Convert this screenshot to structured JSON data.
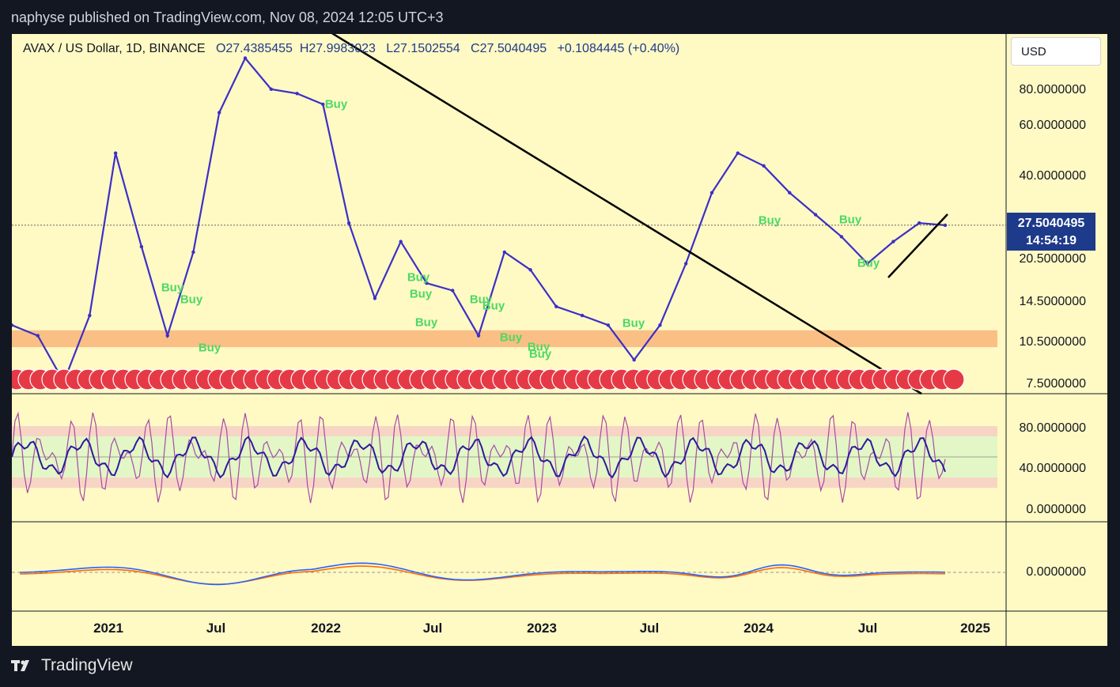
{
  "publisher_line": "naphyse published on TradingView.com, Nov 08, 2024 12:05 UTC+3",
  "header": {
    "symbol": "AVAX / US Dollar, 1D, BINANCE",
    "open": "O27.4385455",
    "high": "H27.9983023",
    "low": "L27.1502554",
    "close": "C27.5040495",
    "change": "+0.1084445 (+0.40%)"
  },
  "currency_button": "USD",
  "current_price": "27.5040495",
  "countdown": "14:54:19",
  "price_axis": [
    "80.0000000",
    "60.0000000",
    "40.0000000",
    "20.5000000",
    "14.5000000",
    "10.5000000",
    "7.5000000"
  ],
  "rsi_axis": [
    "80.0000000",
    "40.0000000",
    "0.0000000"
  ],
  "macd_axis": [
    "0.0000000"
  ],
  "time_axis": [
    "2021",
    "Jul",
    "2022",
    "Jul",
    "2023",
    "Jul",
    "2024",
    "Jul",
    "2025"
  ],
  "buy_signal_text": "Buy",
  "footer_brand": "TradingView",
  "colors": {
    "background": "#fff9c4",
    "price": "#3c2fc7",
    "trendline": "#000000",
    "support_zone": "#f9b57a",
    "buy_signal": "#4cd964",
    "rsi_main": "#2e1a9c",
    "rsi_stoch": "#a64aa8",
    "macd_line": "#2962ff",
    "signal_line": "#ff6d00"
  },
  "chart_data": {
    "type": "line",
    "title": "AVAX / US Dollar, 1D, BINANCE",
    "y_scale": "log",
    "ylim": [
      7.5,
      100
    ],
    "x": [
      "2020-09",
      "2020-11",
      "2021-01",
      "2021-02",
      "2021-04",
      "2021-06",
      "2021-07",
      "2021-09",
      "2021-11",
      "2021-12",
      "2022-01",
      "2022-03",
      "2022-04",
      "2022-05",
      "2022-06",
      "2022-08",
      "2022-09",
      "2022-11",
      "2022-12",
      "2023-02",
      "2023-04",
      "2023-06",
      "2023-07",
      "2023-09",
      "2023-10",
      "2023-11",
      "2023-12",
      "2024-01",
      "2024-03",
      "2024-04",
      "2024-05",
      "2024-06",
      "2024-07",
      "2024-08",
      "2024-09",
      "2024-10",
      "2024-11"
    ],
    "series": [
      {
        "values": [
          12,
          11,
          7.5,
          13,
          50,
          23,
          11,
          22,
          70,
          110,
          85,
          82,
          75,
          28,
          15,
          24,
          17,
          16,
          11,
          22,
          19,
          14,
          13,
          12,
          9,
          12,
          20,
          36,
          50,
          45,
          36,
          30,
          25,
          20,
          24,
          28,
          27.5
        ]
      }
    ],
    "rsi_levels": [
      20,
      30,
      70,
      80
    ],
    "annotations": [
      "Buy",
      "Buy",
      "Buy",
      "Buy",
      "Buy",
      "Buy",
      "Buy",
      "Buy",
      "Buy",
      "Buy",
      "Buy",
      "Buy",
      "Buy",
      "Buy",
      "Buy",
      "Buy"
    ]
  }
}
